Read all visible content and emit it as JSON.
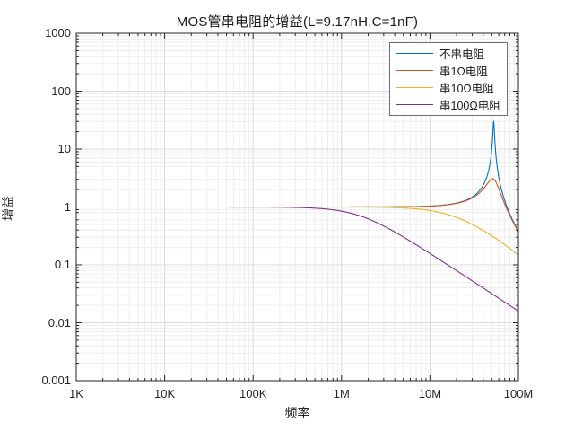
{
  "chart_data": {
    "type": "line",
    "title": "MOS管串电阻的增益(L=9.17nH,C=1nF)",
    "xlabel": "频率",
    "ylabel": "增益",
    "x_scale": "log",
    "y_scale": "log",
    "x_tick_labels": [
      "1K",
      "10K",
      "100K",
      "1M",
      "10M",
      "100M"
    ],
    "x_range_hz": [
      1000,
      100000000
    ],
    "y_tick_labels": [
      "1000",
      "100",
      "10",
      "1",
      "0.1",
      "0.01",
      "0.001"
    ],
    "y_range": [
      0.001,
      1000
    ],
    "grid": "on",
    "minor_grid": "on",
    "legend_position": "top-right-inside",
    "model": {
      "L_nH": 9.17,
      "C_nF": 1,
      "resonance_hz": 52557000,
      "flat_gain": 1,
      "formula": "gain = 1 / sqrt((1-(f/f0)^2)^2 + (2*pi*f*R*C)^2)"
    },
    "series": [
      {
        "label": "不串电阻",
        "color": "#0072BD",
        "R_ohm": 0,
        "R_plot_ohm": 0.1,
        "peak_gain_approx": 30,
        "gain_at_100M_approx": 0.38
      },
      {
        "label": "串1Ω电阻",
        "color": "#D95319",
        "R_ohm": 1,
        "R_plot_ohm": 1,
        "peak_gain_approx": 3,
        "gain_at_100M_approx": 0.38
      },
      {
        "label": "串10Ω电阻",
        "color": "#EDB120",
        "R_ohm": 10,
        "R_plot_ohm": 10,
        "peak_gain_approx": 1,
        "gain_at_100M_approx": 0.15
      },
      {
        "label": "串100Ω电阻",
        "color": "#7E2F8E",
        "R_ohm": 100,
        "R_plot_ohm": 100,
        "peak_gain_approx": 1,
        "gain_at_100M_approx": 0.016
      }
    ],
    "colors": {
      "axis": "#262626",
      "major_grid": "#dadada",
      "minor_grid": "#ededed",
      "background": "#ffffff"
    }
  }
}
